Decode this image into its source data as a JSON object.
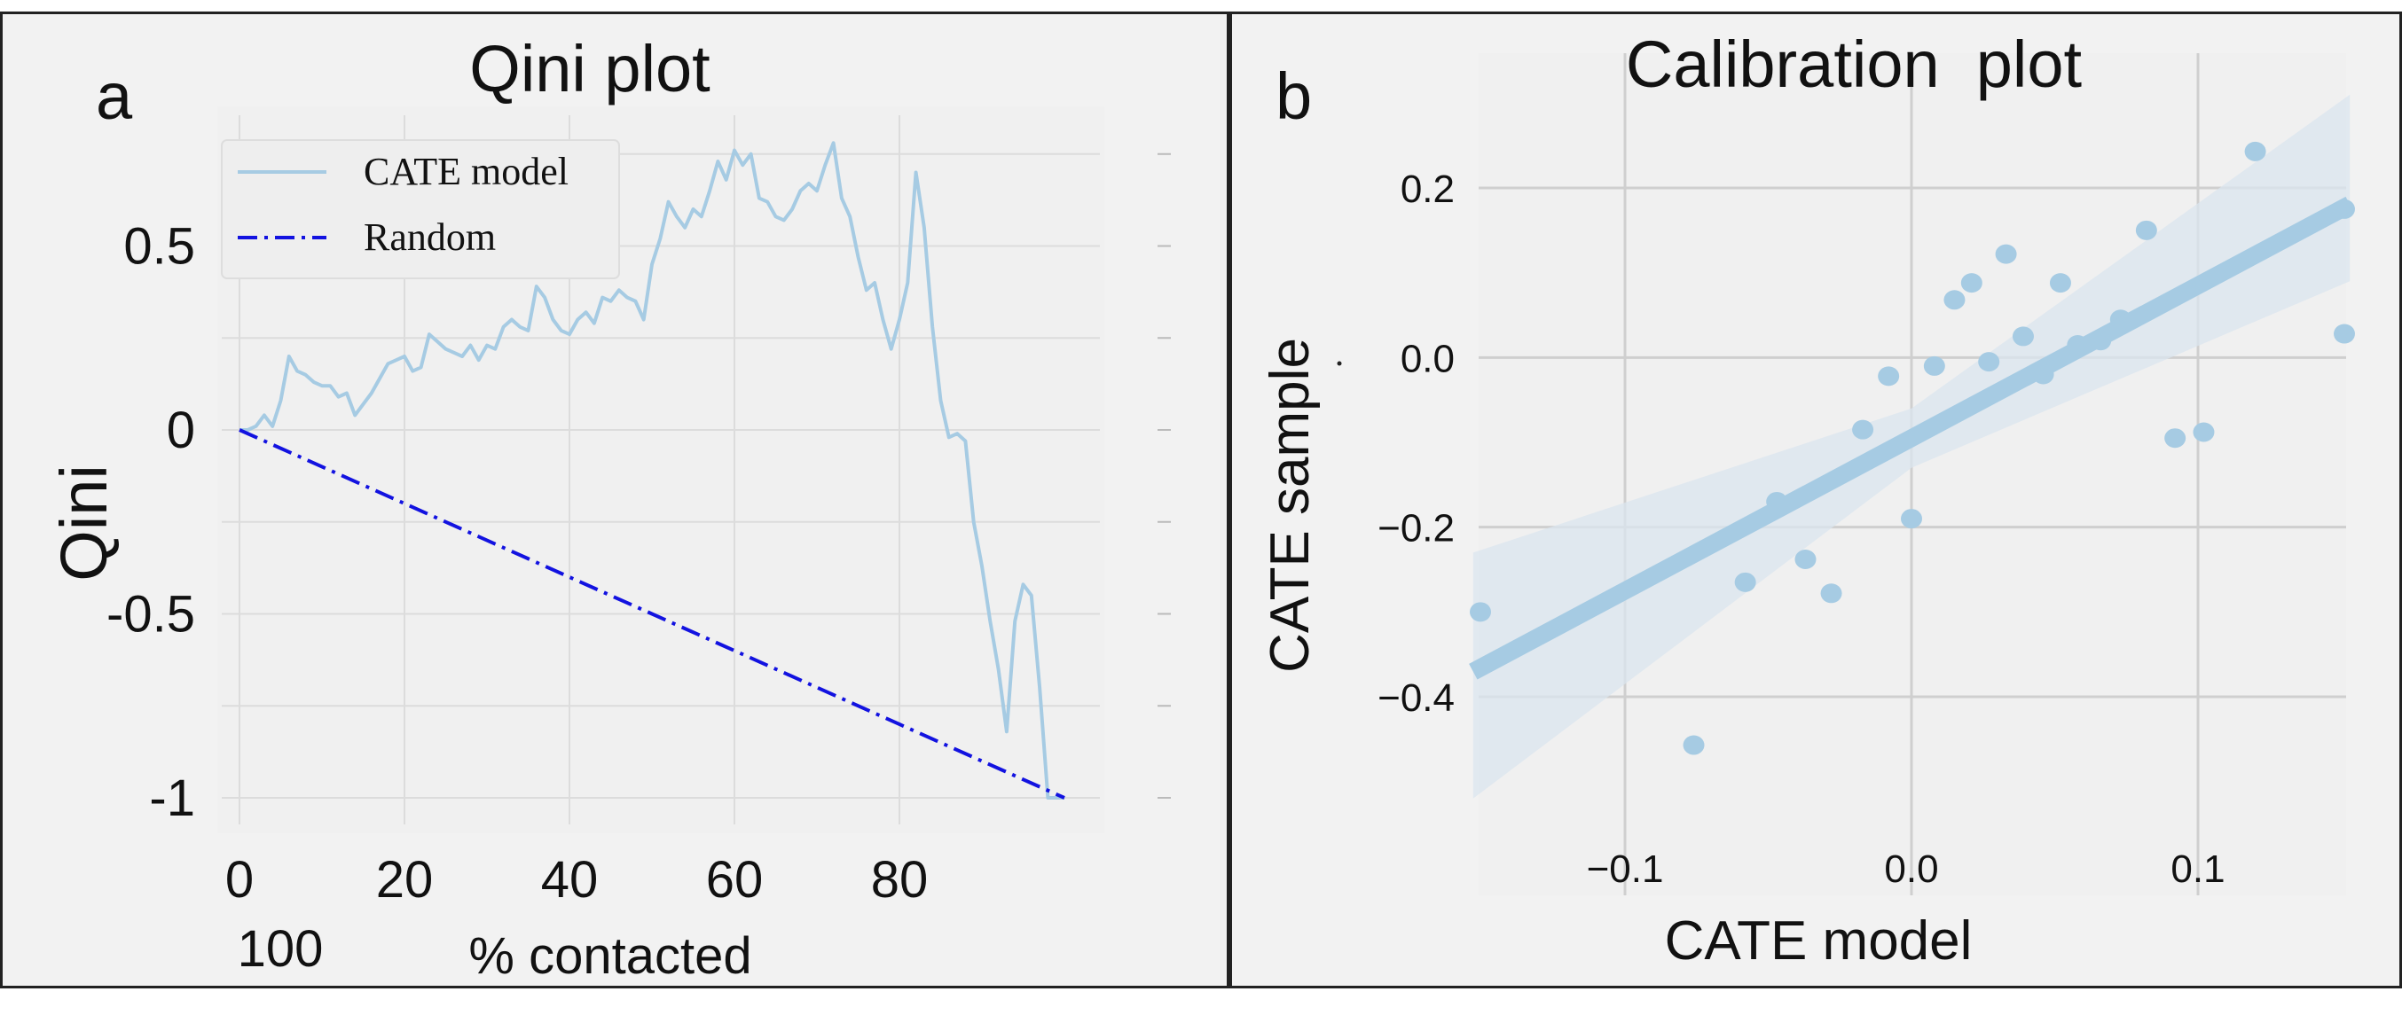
{
  "chart_data": [
    {
      "type": "line",
      "panel_letter": "a",
      "title": "Qini plot",
      "xlabel": "% contacted",
      "ylabel": "Qini",
      "xlim": [
        0,
        100
      ],
      "ylim": [
        -1.0,
        0.78
      ],
      "x_ticks": [
        0,
        20,
        40,
        60,
        80
      ],
      "x_tick_labels": [
        "0",
        "20",
        "40",
        "60",
        "80"
      ],
      "x_extra_label": "100",
      "y_ticks": [
        0.5,
        0,
        -0.5,
        -1
      ],
      "y_tick_labels": [
        "0.5",
        "0",
        "-0.5",
        "-1"
      ],
      "legend": {
        "position": "top-left",
        "entries": [
          "CATE model",
          "Random"
        ]
      },
      "series": [
        {
          "name": "CATE model",
          "color": "#a6cbe3",
          "style": "solid",
          "x": [
            0,
            1,
            2,
            3,
            4,
            5,
            6,
            7,
            8,
            9,
            10,
            11,
            12,
            13,
            14,
            15,
            16,
            17,
            18,
            19,
            20,
            21,
            22,
            23,
            24,
            25,
            26,
            27,
            28,
            29,
            30,
            31,
            32,
            33,
            34,
            35,
            36,
            37,
            38,
            39,
            40,
            41,
            42,
            43,
            44,
            45,
            46,
            47,
            48,
            49,
            50,
            51,
            52,
            53,
            54,
            55,
            56,
            57,
            58,
            59,
            60,
            61,
            62,
            63,
            64,
            65,
            66,
            67,
            68,
            69,
            70,
            71,
            72,
            73,
            74,
            75,
            76,
            77,
            78,
            79,
            80,
            81,
            82,
            83,
            84,
            85,
            86,
            87,
            88,
            89,
            90,
            91,
            92,
            93,
            94,
            95,
            96,
            97,
            98,
            99,
            100
          ],
          "values": [
            0.0,
            0.0,
            0.01,
            0.04,
            0.01,
            0.08,
            0.2,
            0.16,
            0.15,
            0.13,
            0.12,
            0.12,
            0.09,
            0.1,
            0.04,
            0.07,
            0.1,
            0.14,
            0.18,
            0.19,
            0.2,
            0.16,
            0.17,
            0.26,
            0.24,
            0.22,
            0.21,
            0.2,
            0.23,
            0.19,
            0.23,
            0.22,
            0.28,
            0.3,
            0.28,
            0.27,
            0.39,
            0.36,
            0.3,
            0.27,
            0.26,
            0.3,
            0.32,
            0.29,
            0.36,
            0.35,
            0.38,
            0.36,
            0.35,
            0.3,
            0.45,
            0.52,
            0.62,
            0.58,
            0.55,
            0.6,
            0.58,
            0.65,
            0.73,
            0.68,
            0.76,
            0.72,
            0.75,
            0.63,
            0.62,
            0.58,
            0.57,
            0.6,
            0.65,
            0.67,
            0.65,
            0.72,
            0.78,
            0.63,
            0.58,
            0.47,
            0.38,
            0.4,
            0.3,
            0.22,
            0.3,
            0.4,
            0.7,
            0.55,
            0.28,
            0.08,
            -0.02,
            -0.01,
            -0.03,
            -0.25,
            -0.37,
            -0.52,
            -0.65,
            -0.82,
            -0.52,
            -0.42,
            -0.45,
            -0.7,
            -1.0,
            -1.0,
            -1.0
          ]
        },
        {
          "name": "Random",
          "color": "#1212e0",
          "style": "dashdot",
          "x": [
            0,
            100
          ],
          "values": [
            0,
            -1
          ]
        }
      ]
    },
    {
      "type": "scatter",
      "panel_letter": "b",
      "title": "Calibration  plot",
      "xlabel": "CATE model",
      "ylabel": "CATE sample",
      "xlim": [
        -0.153,
        0.153
      ],
      "ylim": [
        -0.53,
        0.36
      ],
      "x_ticks": [
        -0.1,
        0.0,
        0.1
      ],
      "x_tick_labels": [
        "−0.1",
        "0.0",
        "0.1"
      ],
      "y_ticks": [
        0.2,
        0.0,
        -0.2,
        -0.4
      ],
      "y_tick_labels": [
        "0.2",
        "0.0",
        "−0.2",
        "−0.4"
      ],
      "point_color": "#a6cbe3",
      "points": [
        {
          "x": -0.155,
          "y": -0.3
        },
        {
          "x": -0.076,
          "y": -0.457
        },
        {
          "x": -0.058,
          "y": -0.265
        },
        {
          "x": -0.047,
          "y": -0.17
        },
        {
          "x": -0.037,
          "y": -0.238
        },
        {
          "x": -0.028,
          "y": -0.278
        },
        {
          "x": -0.017,
          "y": -0.085
        },
        {
          "x": -0.008,
          "y": -0.022
        },
        {
          "x": 0.0,
          "y": -0.19
        },
        {
          "x": 0.008,
          "y": -0.01
        },
        {
          "x": 0.015,
          "y": 0.068
        },
        {
          "x": 0.021,
          "y": 0.088
        },
        {
          "x": 0.027,
          "y": -0.005
        },
        {
          "x": 0.033,
          "y": 0.122
        },
        {
          "x": 0.039,
          "y": 0.025
        },
        {
          "x": 0.046,
          "y": -0.02
        },
        {
          "x": 0.052,
          "y": 0.088
        },
        {
          "x": 0.058,
          "y": 0.015
        },
        {
          "x": 0.066,
          "y": 0.02
        },
        {
          "x": 0.073,
          "y": 0.045
        },
        {
          "x": 0.082,
          "y": 0.15
        },
        {
          "x": 0.092,
          "y": -0.095
        },
        {
          "x": 0.102,
          "y": -0.088
        },
        {
          "x": 0.12,
          "y": 0.243
        },
        {
          "x": 0.153,
          "y": 0.175
        },
        {
          "x": 0.153,
          "y": 0.028
        }
      ],
      "regression": {
        "slope": 1.8,
        "intercept": -0.095,
        "ci_at_left": [
          -0.52,
          -0.23
        ],
        "ci_at_center": [
          -0.13,
          -0.06
        ],
        "ci_at_right": [
          0.09,
          0.31
        ],
        "color": "#a6cbe3"
      }
    }
  ]
}
